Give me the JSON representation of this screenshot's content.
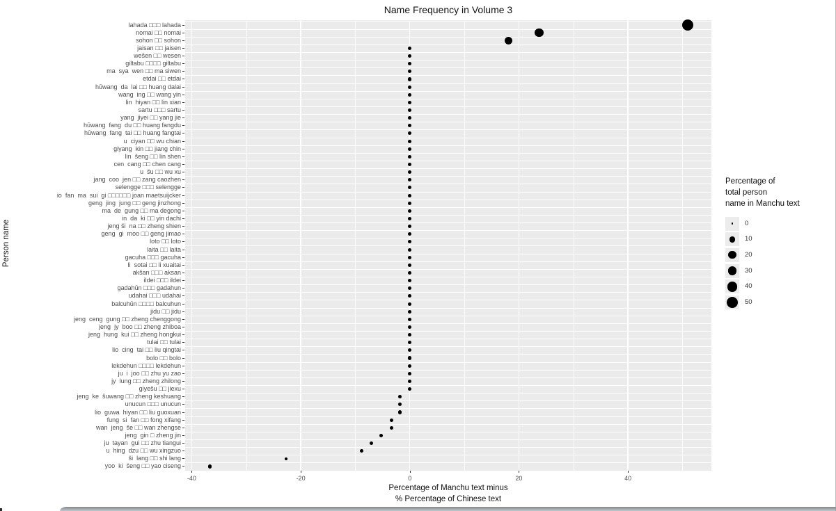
{
  "chart_data": {
    "type": "scatter",
    "title": "Name Frequency in Volume 3",
    "xlabel_lines": [
      "Percentage of Manchu text minus",
      "% Percentage of Chinese text"
    ],
    "ylabel": "Person name",
    "xlim": [
      -41.2,
      55.3
    ],
    "x_ticks": [
      -40,
      -20,
      0,
      20,
      40
    ],
    "x_minor_ticks": [
      -30,
      -10,
      10,
      30,
      50
    ],
    "grid": true,
    "legend": {
      "title_lines": [
        "Percentage of",
        "total person",
        "name in Manchu text"
      ],
      "sizes": [
        0,
        10,
        20,
        30,
        40,
        50
      ],
      "position": "right"
    },
    "points": [
      {
        "label": "lahada □□□ lahada",
        "x": 51,
        "size": 51
      },
      {
        "label": "nomai □□ nomai",
        "x": 23.7,
        "size": 28
      },
      {
        "label": "sohon □□ sohon",
        "x": 18.1,
        "size": 20
      },
      {
        "label": "jaisan □□ jaisen",
        "x": 0,
        "size": 1.5
      },
      {
        "label": "wešen □□ wesen",
        "x": 0,
        "size": 1.5
      },
      {
        "label": "giltabu □□□□ giltabu",
        "x": 0,
        "size": 1.5
      },
      {
        "label": "ma  sya  wen □□ ma siwen",
        "x": 0,
        "size": 1.5
      },
      {
        "label": "etdai □□ etdai",
        "x": 0,
        "size": 1.5
      },
      {
        "label": "hūwang  da  lai □□ huang dalai",
        "x": 0,
        "size": 1.5
      },
      {
        "label": "wang  ing □□ wang yin",
        "x": 0,
        "size": 1.5
      },
      {
        "label": "lin  hiyan □□ lin xian",
        "x": 0,
        "size": 1.5
      },
      {
        "label": "sartu □□□ sartu",
        "x": 0,
        "size": 1.5
      },
      {
        "label": "yang  jiyei □□ yang jie",
        "x": 0,
        "size": 1.5
      },
      {
        "label": "hūwang  fang  du □□ huang fangdu",
        "x": 0,
        "size": 1.5
      },
      {
        "label": "hūwang  fang  tai □□ huang fangtai",
        "x": 0,
        "size": 1.5
      },
      {
        "label": "u  ciyan □□ wu chian",
        "x": 0,
        "size": 1.5
      },
      {
        "label": "giyang  kin □□ jiang chin",
        "x": 0,
        "size": 1.5
      },
      {
        "label": "lin  šeng □□ lin shen",
        "x": 0,
        "size": 1.5
      },
      {
        "label": "cen  cang □□ chen cang",
        "x": 0,
        "size": 1.5
      },
      {
        "label": "u  šu □□ wu xu",
        "x": 0,
        "size": 1.5
      },
      {
        "label": "jang  coo  jen □□ zang caozhen",
        "x": 0,
        "size": 1.5
      },
      {
        "label": "selengge □□□ selengge",
        "x": 0,
        "size": 1.5
      },
      {
        "label": "io  fan  ma  sui  gi □□□□□□ joan maetsuijcker",
        "x": 0,
        "size": 1.5
      },
      {
        "label": "geng  jing  jung □□ geng jinzhong",
        "x": 0,
        "size": 1.5
      },
      {
        "label": "ma  de  gung □□ ma degong",
        "x": 0,
        "size": 1.5
      },
      {
        "label": "in  da  ki □□ yin dachi",
        "x": 0,
        "size": 1.5
      },
      {
        "label": "jeng ši  na □□ zheng shien",
        "x": 0,
        "size": 1.5
      },
      {
        "label": "geng  gi  moo □□ geng jimao",
        "x": 0,
        "size": 1.5
      },
      {
        "label": "loto □□ loto",
        "x": 0,
        "size": 1.5
      },
      {
        "label": "laita □□ laita",
        "x": 0,
        "size": 1.5
      },
      {
        "label": "gacuha □□□ gacuha",
        "x": 0,
        "size": 1.5
      },
      {
        "label": "li  sotai □□ li xuaitai",
        "x": 0,
        "size": 1.5
      },
      {
        "label": "akšan □□□ aksan",
        "x": 0,
        "size": 1.5
      },
      {
        "label": "ildei □□□ ildei",
        "x": 0,
        "size": 1.5
      },
      {
        "label": "gadahūn □□□ gadahun",
        "x": 0,
        "size": 1.5
      },
      {
        "label": "udahai □□□ udahai",
        "x": 0,
        "size": 1.5
      },
      {
        "label": "balcuhūn □□□□ balcuhun",
        "x": 0,
        "size": 1.5
      },
      {
        "label": "jidu □□ jidu",
        "x": 0,
        "size": 1.5
      },
      {
        "label": "jeng  ceng  gung □□ zheng chenggong",
        "x": 0,
        "size": 1.5
      },
      {
        "label": "jeng  jy  boo □□ zheng zhiboa",
        "x": 0,
        "size": 1.5
      },
      {
        "label": "jeng  hung  kui □□ zheng hongkui",
        "x": 0,
        "size": 1.5
      },
      {
        "label": "tulai □□ tulai",
        "x": 0,
        "size": 1.5
      },
      {
        "label": "lio  cing  tai □□ liu qingtai",
        "x": 0,
        "size": 1.5
      },
      {
        "label": "bolo □□ bolo",
        "x": 0,
        "size": 1.5
      },
      {
        "label": "lekdehun □□□□ lekdehun",
        "x": 0,
        "size": 1.5
      },
      {
        "label": "ju  i  joo □□ zhu yu zao",
        "x": 0,
        "size": 1.5
      },
      {
        "label": "jy  lung □□ zheng zhilong",
        "x": 0,
        "size": 1.5
      },
      {
        "label": "giyešu □□ jiexu",
        "x": 0,
        "size": 1.5
      },
      {
        "label": "jeng  ke  šuwang □□ zheng keshuang",
        "x": -1.8,
        "size": 1.5
      },
      {
        "label": "unucun □□□ unucun",
        "x": -1.8,
        "size": 1.5
      },
      {
        "label": "lio  guwa  hiyan □□ liu guoxuan",
        "x": -1.8,
        "size": 1.5
      },
      {
        "label": "fung  si  fan □□ fong xifang",
        "x": -3.4,
        "size": 1.5
      },
      {
        "label": "wan  jeng  še □□ wan zhengse",
        "x": -3.4,
        "size": 1.5
      },
      {
        "label": "jeng  gin □ zheng jin",
        "x": -5.3,
        "size": 1.5
      },
      {
        "label": "ju  tayan  gui □□ zhu tiangui",
        "x": -7.0,
        "size": 1.5
      },
      {
        "label": "u  hing  dzu □□ wu xingzuo",
        "x": -8.8,
        "size": 1.5
      },
      {
        "label": "ši  lang □□ shi lang",
        "x": -22.7,
        "size": 1.0
      },
      {
        "label": "yoo  ki  šeng □□ yao ciseng",
        "x": -36.7,
        "size": 1.5
      }
    ],
    "colors": {
      "dot": "#000000",
      "panel_bg": "#EBEBEB",
      "gridline": "#FFFFFF",
      "axis_text": "#4d4d4d"
    }
  }
}
